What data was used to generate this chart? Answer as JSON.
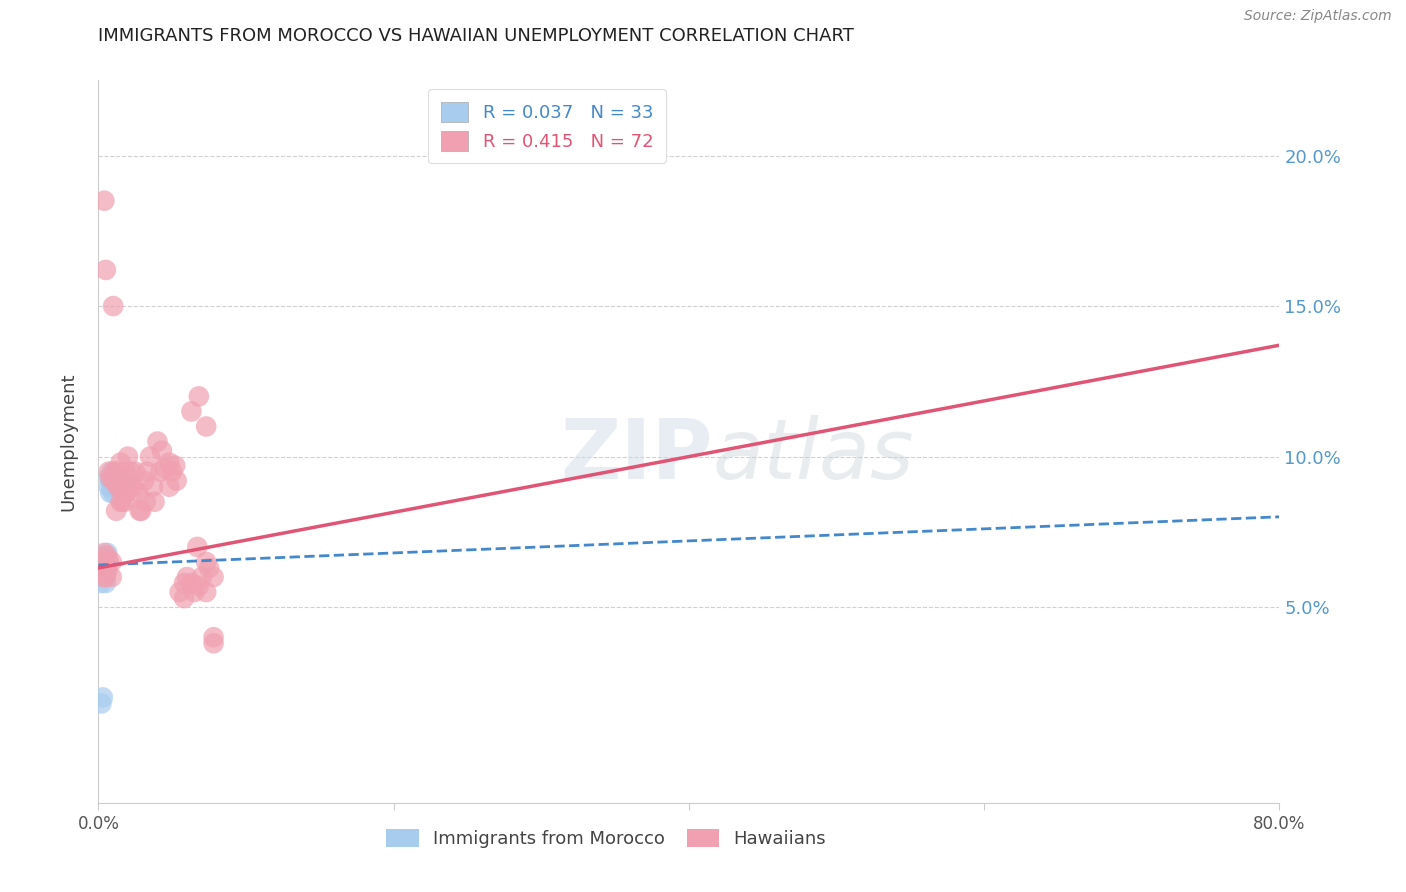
{
  "title": "IMMIGRANTS FROM MOROCCO VS HAWAIIAN UNEMPLOYMENT CORRELATION CHART",
  "source": "Source: ZipAtlas.com",
  "ylabel": "Unemployment",
  "xlabel": "",
  "watermark": "ZIPatlas",
  "blue_R": "0.037",
  "blue_N": "33",
  "pink_R": "0.415",
  "pink_N": "72",
  "blue_color": "#a8ccee",
  "pink_color": "#f0a0b0",
  "blue_line_color": "#4488cc",
  "pink_line_color": "#e05575",
  "xlim": [
    0.0,
    0.8
  ],
  "ylim": [
    -0.015,
    0.225
  ],
  "yticks": [
    0.05,
    0.1,
    0.15,
    0.2
  ],
  "ytick_labels": [
    "5.0%",
    "10.0%",
    "15.0%",
    "20.0%"
  ],
  "xticks": [
    0.0,
    0.2,
    0.4,
    0.6,
    0.8
  ],
  "xtick_labels": [
    "0.0%",
    "",
    "",
    "",
    "80.0%"
  ],
  "blue_scatter_x": [
    0.001,
    0.001,
    0.002,
    0.002,
    0.002,
    0.003,
    0.003,
    0.003,
    0.004,
    0.004,
    0.004,
    0.005,
    0.005,
    0.005,
    0.005,
    0.006,
    0.006,
    0.006,
    0.007,
    0.007,
    0.008,
    0.008,
    0.009,
    0.009,
    0.01,
    0.011,
    0.012,
    0.013,
    0.015,
    0.018,
    0.002,
    0.003,
    0.02
  ],
  "blue_scatter_y": [
    0.063,
    0.06,
    0.064,
    0.061,
    0.058,
    0.065,
    0.062,
    0.067,
    0.06,
    0.063,
    0.066,
    0.062,
    0.065,
    0.06,
    0.058,
    0.063,
    0.066,
    0.068,
    0.09,
    0.093,
    0.092,
    0.088,
    0.095,
    0.09,
    0.088,
    0.091,
    0.093,
    0.09,
    0.093,
    0.093,
    0.018,
    0.02,
    0.093
  ],
  "pink_scatter_x": [
    0.001,
    0.002,
    0.003,
    0.003,
    0.004,
    0.004,
    0.005,
    0.005,
    0.006,
    0.006,
    0.007,
    0.008,
    0.009,
    0.01,
    0.01,
    0.011,
    0.012,
    0.013,
    0.014,
    0.015,
    0.016,
    0.017,
    0.018,
    0.019,
    0.02,
    0.022,
    0.024,
    0.025,
    0.027,
    0.029,
    0.031,
    0.033,
    0.035,
    0.037,
    0.04,
    0.043,
    0.045,
    0.048,
    0.05,
    0.053,
    0.055,
    0.058,
    0.06,
    0.063,
    0.065,
    0.068,
    0.07,
    0.073,
    0.075,
    0.078,
    0.003,
    0.005,
    0.007,
    0.009,
    0.012,
    0.015,
    0.018,
    0.022,
    0.028,
    0.032,
    0.038,
    0.042,
    0.048,
    0.052,
    0.058,
    0.063,
    0.068,
    0.073,
    0.078,
    0.067,
    0.073,
    0.078
  ],
  "pink_scatter_y": [
    0.063,
    0.065,
    0.063,
    0.06,
    0.068,
    0.185,
    0.065,
    0.162,
    0.062,
    0.067,
    0.095,
    0.093,
    0.065,
    0.092,
    0.15,
    0.095,
    0.095,
    0.09,
    0.09,
    0.098,
    0.085,
    0.09,
    0.095,
    0.088,
    0.1,
    0.095,
    0.09,
    0.095,
    0.088,
    0.082,
    0.092,
    0.095,
    0.1,
    0.09,
    0.105,
    0.102,
    0.096,
    0.098,
    0.095,
    0.092,
    0.055,
    0.058,
    0.06,
    0.058,
    0.055,
    0.057,
    0.06,
    0.055,
    0.063,
    0.06,
    0.062,
    0.06,
    0.065,
    0.06,
    0.082,
    0.085,
    0.085,
    0.09,
    0.082,
    0.085,
    0.085,
    0.095,
    0.09,
    0.097,
    0.053,
    0.115,
    0.12,
    0.11,
    0.038,
    0.07,
    0.065,
    0.04
  ],
  "blue_trendline_x0": 0.0,
  "blue_trendline_y0": 0.064,
  "blue_trendline_x1": 0.8,
  "blue_trendline_y1": 0.08,
  "pink_trendline_x0": 0.0,
  "pink_trendline_y0": 0.063,
  "pink_trendline_x1": 0.8,
  "pink_trendline_y1": 0.137
}
